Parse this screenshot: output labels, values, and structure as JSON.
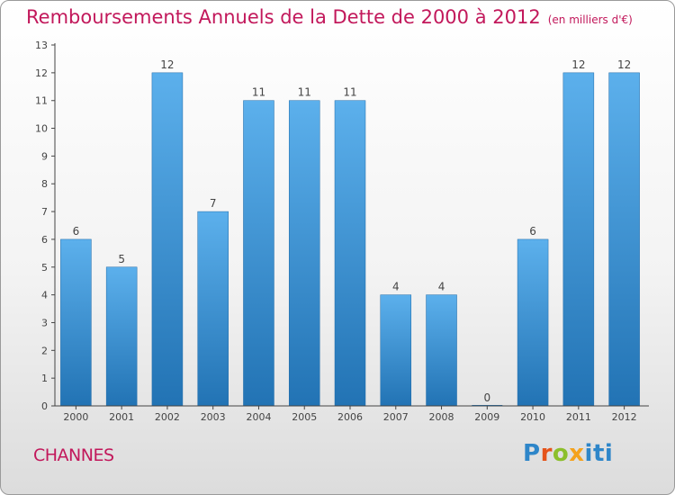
{
  "header": {
    "title": "Remboursements Annuels de la Dette de 2000 à 2012",
    "unit": "(en milliers d'€)"
  },
  "footer": {
    "commune": "CHANNES",
    "logo_text": "Proxiti",
    "logo_colors": [
      "#2e86c9",
      "#e5531a",
      "#8cbf2c",
      "#f4a21d",
      "#2e86c9"
    ]
  },
  "chart_data": {
    "type": "bar",
    "title": "Remboursements Annuels de la Dette de 2000 à 2012",
    "subtitle": "(en milliers d'€)",
    "xlabel": "",
    "ylabel": "",
    "categories": [
      "2000",
      "2001",
      "2002",
      "2003",
      "2004",
      "2005",
      "2006",
      "2007",
      "2008",
      "2009",
      "2010",
      "2011",
      "2012"
    ],
    "values": [
      6,
      5,
      12,
      7,
      11,
      11,
      11,
      4,
      4,
      0,
      6,
      12,
      12
    ],
    "data_labels": [
      "6",
      "5",
      "12",
      "7",
      "11",
      "11",
      "11",
      "4",
      "4",
      "0",
      "6",
      "12",
      "12"
    ],
    "yticks": [
      0,
      1,
      2,
      3,
      4,
      5,
      6,
      7,
      8,
      9,
      10,
      11,
      12,
      13
    ],
    "ylim": [
      0,
      13
    ],
    "grid": false,
    "legend": "none",
    "colors": {
      "bar_light": "#5cb0ec",
      "bar_dark": "#2273b4",
      "axis": "#444444",
      "text": "#444444"
    }
  }
}
